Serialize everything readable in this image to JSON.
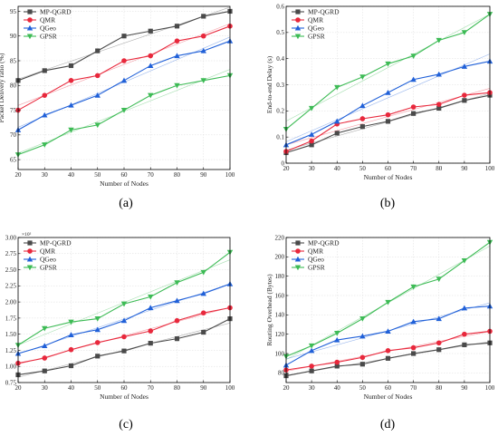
{
  "figure": {
    "legend_labels": [
      "MP-QGRD",
      "QMR",
      "QGeo",
      "GPSR"
    ]
  },
  "colors": {
    "MP-QGRD": "#4a4a4a",
    "QMR": "#e8283c",
    "QGeo": "#2060d8",
    "GPSR": "#3dbb55"
  },
  "chart_data": [
    {
      "type": "line",
      "panel_tag": "(a)",
      "xlabel": "Number of  Nodes",
      "ylabel": "Packet Delivery ratio (%)",
      "x": [
        20,
        30,
        40,
        50,
        60,
        70,
        80,
        90,
        100
      ],
      "xticks": [
        "20",
        "30",
        "40",
        "50",
        "60",
        "70",
        "80",
        "90",
        "100"
      ],
      "xlim": [
        20,
        100
      ],
      "ylim": [
        63,
        96
      ],
      "yticks": [
        "65",
        "70",
        "75",
        "80",
        "85",
        "90",
        "95"
      ],
      "ytick_values": [
        65,
        70,
        75,
        80,
        85,
        90,
        95
      ],
      "grid": true,
      "legend_position": "top-left",
      "series": [
        {
          "name": "MP-QGRD",
          "marker": "square",
          "values": [
            81,
            83,
            84,
            87,
            90,
            91,
            92,
            94,
            95
          ]
        },
        {
          "name": "QMR",
          "marker": "circle",
          "values": [
            75,
            78,
            81,
            82,
            85,
            86,
            89,
            90,
            92
          ]
        },
        {
          "name": "QGeo",
          "marker": "triangle-up",
          "values": [
            71,
            74,
            76,
            78,
            81,
            84,
            86,
            87,
            89
          ]
        },
        {
          "name": "GPSR",
          "marker": "triangle-down",
          "values": [
            66,
            68,
            71,
            72,
            75,
            78,
            80,
            81,
            82
          ]
        }
      ]
    },
    {
      "type": "line",
      "panel_tag": "(b)",
      "xlabel": "Number of Nodes",
      "ylabel": "End-to-end Delay (s)",
      "x": [
        20,
        30,
        40,
        50,
        60,
        70,
        80,
        90,
        100
      ],
      "xticks": [
        "20",
        "30",
        "40",
        "50",
        "60",
        "70",
        "80",
        "90",
        "100"
      ],
      "xlim": [
        20,
        100
      ],
      "ylim": [
        0,
        0.6
      ],
      "yticks": [
        "0",
        "0.1",
        "0.2",
        "0.3",
        "0.4",
        "0.5",
        "0.6"
      ],
      "ytick_values": [
        0,
        0.1,
        0.2,
        0.3,
        0.4,
        0.5,
        0.6
      ],
      "grid": true,
      "legend_position": "top-left",
      "series": [
        {
          "name": "MP-QGRD",
          "marker": "square",
          "values": [
            0.04,
            0.07,
            0.115,
            0.14,
            0.16,
            0.19,
            0.21,
            0.24,
            0.26
          ]
        },
        {
          "name": "QMR",
          "marker": "circle",
          "values": [
            0.045,
            0.085,
            0.15,
            0.17,
            0.185,
            0.215,
            0.225,
            0.26,
            0.27
          ]
        },
        {
          "name": "QGeo",
          "marker": "triangle-up",
          "values": [
            0.07,
            0.11,
            0.16,
            0.22,
            0.27,
            0.32,
            0.34,
            0.37,
            0.39
          ]
        },
        {
          "name": "GPSR",
          "marker": "triangle-down",
          "values": [
            0.13,
            0.21,
            0.29,
            0.33,
            0.38,
            0.41,
            0.47,
            0.5,
            0.57
          ]
        }
      ]
    },
    {
      "type": "line",
      "panel_tag": "(c)",
      "xlabel": "Number of Nodes",
      "ylabel": "Energy Consumption (J)",
      "axis_exponent": "×10²",
      "x": [
        20,
        30,
        40,
        50,
        60,
        70,
        80,
        90,
        100
      ],
      "xticks": [
        "20",
        "30",
        "40",
        "50",
        "60",
        "70",
        "80",
        "90",
        "100"
      ],
      "xlim": [
        20,
        100
      ],
      "ylim": [
        0.75,
        3.0
      ],
      "yticks": [
        "0.75",
        "1.00",
        "1.25",
        "1.50",
        "1.75",
        "2.00",
        "2.25",
        "2.50",
        "2.75",
        "3.00"
      ],
      "ytick_values": [
        0.75,
        1.0,
        1.25,
        1.5,
        1.75,
        2.0,
        2.25,
        2.5,
        2.75,
        3.0
      ],
      "grid": true,
      "legend_position": "top-left",
      "series": [
        {
          "name": "MP-QGRD",
          "marker": "square",
          "values": [
            0.87,
            0.93,
            1.01,
            1.16,
            1.24,
            1.36,
            1.43,
            1.53,
            1.74
          ]
        },
        {
          "name": "QMR",
          "marker": "circle",
          "values": [
            1.05,
            1.13,
            1.26,
            1.37,
            1.46,
            1.55,
            1.71,
            1.83,
            1.91
          ]
        },
        {
          "name": "QGeo",
          "marker": "triangle-up",
          "values": [
            1.2,
            1.32,
            1.49,
            1.57,
            1.71,
            1.91,
            2.02,
            2.13,
            2.28
          ]
        },
        {
          "name": "GPSR",
          "marker": "triangle-down",
          "values": [
            1.33,
            1.59,
            1.69,
            1.74,
            1.97,
            2.08,
            2.3,
            2.46,
            2.77
          ]
        }
      ]
    },
    {
      "type": "line",
      "panel_tag": "(d)",
      "xlabel": "Number of Nodes",
      "ylabel": "Routing Overhead (Bytes)",
      "x": [
        20,
        30,
        40,
        50,
        60,
        70,
        80,
        90,
        100
      ],
      "xticks": [
        "20",
        "30",
        "40",
        "50",
        "60",
        "70",
        "80",
        "90",
        "100"
      ],
      "xlim": [
        20,
        100
      ],
      "ylim": [
        70,
        220
      ],
      "yticks": [
        "80",
        "100",
        "120",
        "140",
        "160",
        "180",
        "200",
        "220"
      ],
      "ytick_values": [
        80,
        100,
        120,
        140,
        160,
        180,
        200,
        220
      ],
      "grid": true,
      "legend_position": "top-left",
      "series": [
        {
          "name": "MP-QGRD",
          "marker": "square",
          "values": [
            77,
            82,
            87,
            89,
            95,
            100,
            104,
            109,
            111
          ]
        },
        {
          "name": "QMR",
          "marker": "circle",
          "values": [
            83,
            87,
            91,
            96,
            103,
            106,
            111,
            120,
            123
          ]
        },
        {
          "name": "QGeo",
          "marker": "triangle-up",
          "values": [
            88,
            103,
            114,
            118,
            123,
            133,
            136,
            147,
            149
          ]
        },
        {
          "name": "GPSR",
          "marker": "triangle-down",
          "values": [
            97,
            108,
            121,
            136,
            153,
            169,
            177,
            196,
            215
          ]
        }
      ]
    }
  ]
}
